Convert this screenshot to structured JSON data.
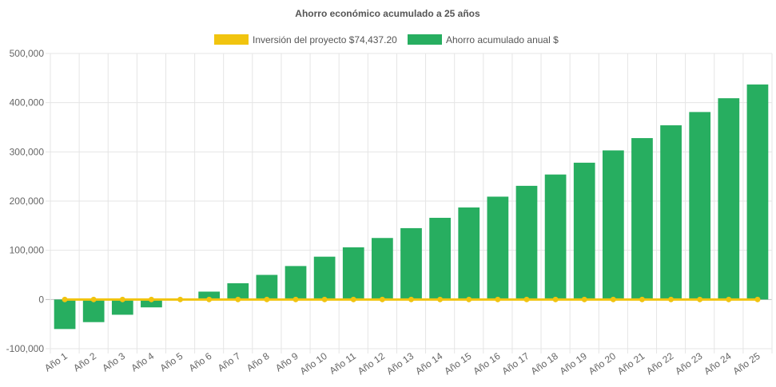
{
  "chart_data": {
    "type": "bar",
    "title": "Ahorro económico acumulado a 25 años",
    "legend_position": "top-center",
    "grid": true,
    "ylim": [
      -100000,
      500000
    ],
    "yticks": [
      500000,
      400000,
      300000,
      200000,
      100000,
      0,
      -100000
    ],
    "ytick_labels": [
      "500,000",
      "400,000",
      "300,000",
      "200,000",
      "100,000",
      "0",
      "-100,000"
    ],
    "categories": [
      "Año 1",
      "Año 2",
      "Año 3",
      "Año 4",
      "Año 5",
      "Año 6",
      "Año 7",
      "Año 8",
      "Año 9",
      "Año 10",
      "Año 11",
      "Año 12",
      "Año 13",
      "Año 14",
      "Año 15",
      "Año 16",
      "Año 17",
      "Año 18",
      "Año 19",
      "Año 20",
      "Año 21",
      "Año 22",
      "Año 23",
      "Año 24",
      "Año 25"
    ],
    "series": [
      {
        "name": "Inversión del proyecto $74,437.20",
        "type": "line",
        "color": "#f1c40f",
        "values": [
          0,
          0,
          0,
          0,
          0,
          0,
          0,
          0,
          0,
          0,
          0,
          0,
          0,
          0,
          0,
          0,
          0,
          0,
          0,
          0,
          0,
          0,
          0,
          0,
          0
        ]
      },
      {
        "name": "Ahorro acumulado anual $",
        "type": "bar",
        "color": "#27ae60",
        "values": [
          -60000,
          -46000,
          -31000,
          -16000,
          -1000,
          16000,
          33000,
          50000,
          68000,
          87000,
          106000,
          125000,
          145000,
          166000,
          187000,
          209000,
          231000,
          254000,
          278000,
          303000,
          328000,
          354000,
          381000,
          409000,
          437000
        ]
      }
    ]
  }
}
